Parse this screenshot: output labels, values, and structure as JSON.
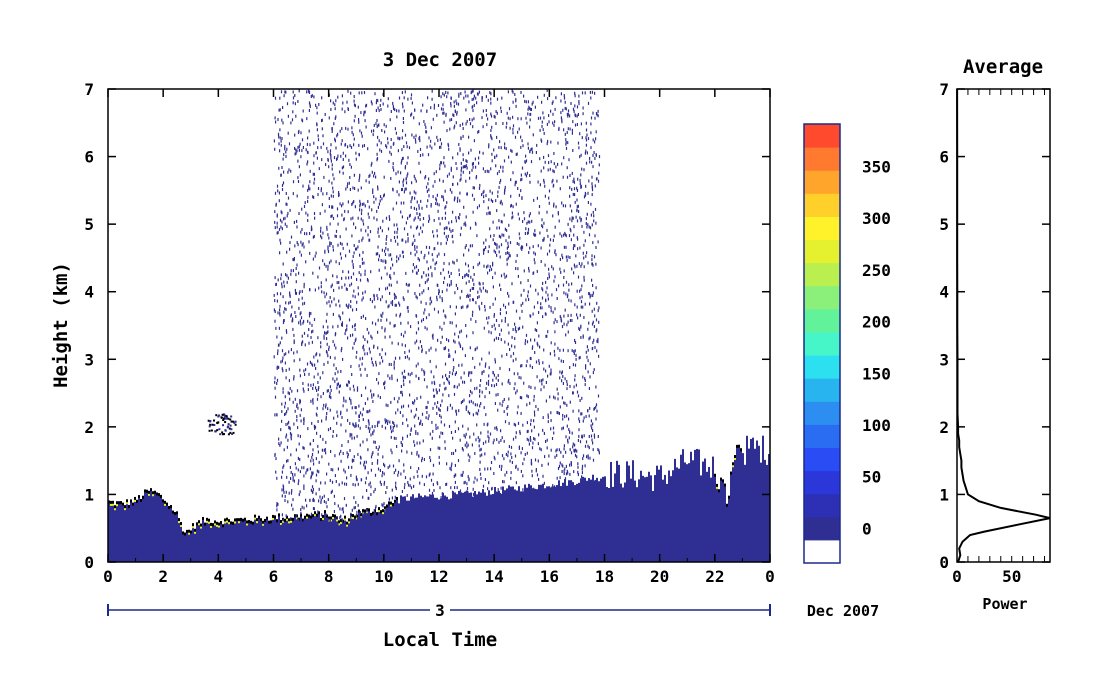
{
  "chart_data": [
    {
      "type": "heatmap",
      "title": "3 Dec 2007",
      "xlabel": "Local Time",
      "ylabel": "Height (km)",
      "xlim": [
        0,
        24
      ],
      "ylim": [
        0,
        7
      ],
      "x_ticks": [
        "0",
        "2",
        "4",
        "6",
        "8",
        "10",
        "12",
        "14",
        "16",
        "18",
        "20",
        "22",
        "0"
      ],
      "y_ticks": [
        "0",
        "1",
        "2",
        "3",
        "4",
        "5",
        "6",
        "7"
      ],
      "date_day": "3",
      "date_month": "Dec 2007",
      "colorbar": {
        "min": 0,
        "max": 380,
        "labels": [
          "0",
          "50",
          "100",
          "150",
          "200",
          "250",
          "300",
          "350"
        ],
        "colors": [
          "#ffffff",
          "#2f2f93",
          "#2d30b5",
          "#2b37d9",
          "#2a4cf5",
          "#2b6df2",
          "#2b8ef0",
          "#27b4ef",
          "#2de0ef",
          "#46f5c8",
          "#62f39a",
          "#8af07a",
          "#b9f050",
          "#e5f02f",
          "#fff22a",
          "#ffd02a",
          "#ffa52b",
          "#ff7a2e",
          "#ff4a2e"
        ]
      },
      "boundary_layer_top_km": [
        [
          0.0,
          0.88
        ],
        [
          0.5,
          0.85
        ],
        [
          1.0,
          0.9
        ],
        [
          1.5,
          1.05
        ],
        [
          1.8,
          1.0
        ],
        [
          2.2,
          0.85
        ],
        [
          2.5,
          0.7
        ],
        [
          2.8,
          0.42
        ],
        [
          3.2,
          0.55
        ],
        [
          3.6,
          0.62
        ],
        [
          4.0,
          0.6
        ],
        [
          5.0,
          0.62
        ],
        [
          6.0,
          0.65
        ],
        [
          7.0,
          0.67
        ],
        [
          8.0,
          0.7
        ],
        [
          8.5,
          0.6
        ],
        [
          9.0,
          0.72
        ],
        [
          9.5,
          0.75
        ],
        [
          10.0,
          0.8
        ],
        [
          10.5,
          0.92
        ],
        [
          11.0,
          0.95
        ],
        [
          12.0,
          0.98
        ],
        [
          13.0,
          1.0
        ],
        [
          14.0,
          1.05
        ],
        [
          15.0,
          1.1
        ],
        [
          16.0,
          1.15
        ],
        [
          17.0,
          1.2
        ],
        [
          18.0,
          1.3
        ],
        [
          19.0,
          1.3
        ],
        [
          20.0,
          1.25
        ],
        [
          21.0,
          1.5
        ],
        [
          22.0,
          1.4
        ],
        [
          22.4,
          0.9
        ],
        [
          22.8,
          1.6
        ],
        [
          23.4,
          1.7
        ],
        [
          24.0,
          1.65
        ]
      ],
      "noise_region_hours": [
        6.0,
        17.8
      ]
    },
    {
      "type": "line",
      "title": "Average",
      "xlabel": "Power",
      "ylabel": "",
      "xlim": [
        0,
        85
      ],
      "ylim": [
        0,
        7
      ],
      "x_ticks": [
        "0",
        "50"
      ],
      "y_ticks": [
        "0",
        "1",
        "2",
        "3",
        "4",
        "5",
        "6",
        "7"
      ],
      "series": [
        {
          "power": [
            1,
            3,
            2,
            5,
            12,
            25,
            55,
            85,
            72,
            40,
            20,
            10,
            8,
            6,
            5,
            4,
            4,
            3,
            2,
            2,
            1,
            1,
            0.5,
            0.5,
            0.5,
            0.3,
            0.3,
            0.2,
            0.2,
            0.2,
            0.1
          ],
          "height_km": [
            0.0,
            0.1,
            0.2,
            0.3,
            0.4,
            0.45,
            0.55,
            0.65,
            0.7,
            0.8,
            0.9,
            1.0,
            1.1,
            1.2,
            1.3,
            1.4,
            1.5,
            1.6,
            1.7,
            1.8,
            1.9,
            2.0,
            2.2,
            2.5,
            3.0,
            3.5,
            4.0,
            4.5,
            5.0,
            6.0,
            7.0
          ]
        }
      ]
    }
  ]
}
